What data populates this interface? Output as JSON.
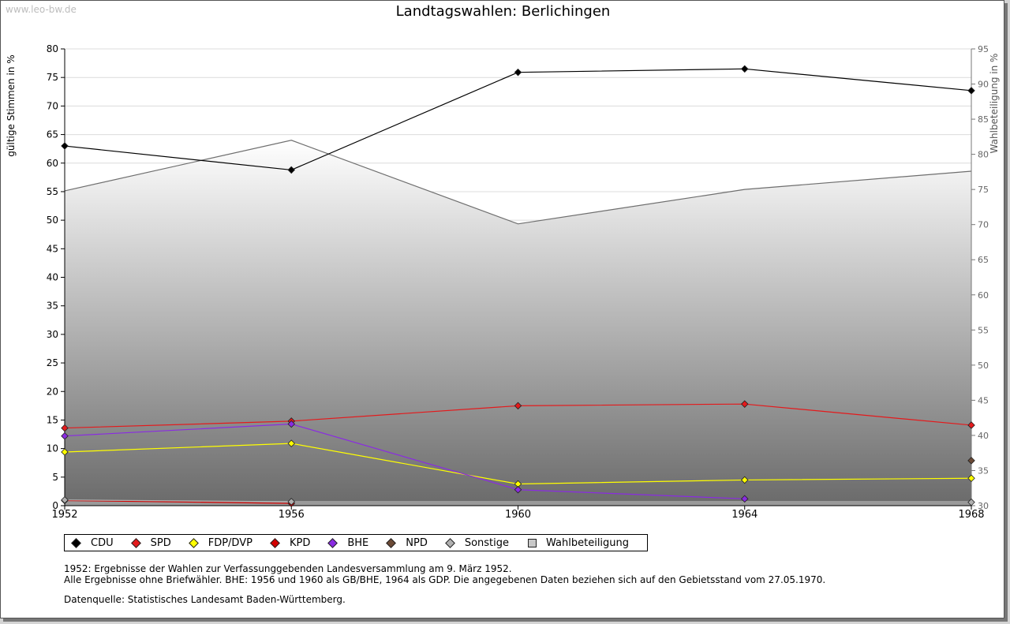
{
  "watermark": "www.leo-bw.de",
  "chart_data": {
    "type": "line",
    "title": "Landtagswahlen: Berlichingen",
    "ylabel": "gültige Stimmen in %",
    "y2label": "Wahlbeteiligung in %",
    "x": [
      "1952",
      "1956",
      "1960",
      "1964",
      "1968"
    ],
    "ylim": [
      0,
      80
    ],
    "yticks": [
      "0",
      "5",
      "10",
      "15",
      "20",
      "25",
      "30",
      "35",
      "40",
      "45",
      "50",
      "55",
      "60",
      "65",
      "70",
      "75",
      "80"
    ],
    "y2lim": [
      30,
      95
    ],
    "y2ticks": [
      "30",
      "35",
      "40",
      "45",
      "50",
      "55",
      "60",
      "65",
      "70",
      "75",
      "80",
      "85",
      "90",
      "95"
    ],
    "grid": true,
    "series": [
      {
        "name": "CDU",
        "color": "#000000",
        "values": [
          63.0,
          58.8,
          75.9,
          76.5,
          72.7
        ]
      },
      {
        "name": "SPD",
        "color": "#e41a1c",
        "values": [
          13.6,
          14.8,
          17.5,
          17.8,
          14.1
        ]
      },
      {
        "name": "FDP/DVP",
        "color": "#ffff00",
        "values": [
          9.4,
          10.9,
          3.8,
          4.5,
          4.8
        ]
      },
      {
        "name": "KPD",
        "color": "#d40000",
        "values": [
          0.9,
          0.4,
          null,
          null,
          null
        ]
      },
      {
        "name": "BHE",
        "color": "#8a2be2",
        "values": [
          12.2,
          14.3,
          2.8,
          1.2,
          null
        ]
      },
      {
        "name": "NPD",
        "color": "#6b4a36",
        "values": [
          null,
          null,
          null,
          null,
          7.9
        ]
      },
      {
        "name": "Sonstige",
        "color": "#b0b0b0",
        "values": [
          1.0,
          0.7,
          null,
          null,
          0.6
        ]
      }
    ],
    "turnout": {
      "name": "Wahlbeteiligung",
      "values": [
        74.8,
        82.0,
        70.1,
        75.0,
        77.6
      ]
    },
    "legend_position": "bottom"
  },
  "notes": {
    "line1": "1952: Ergebnisse der Wahlen zur Verfassunggebenden Landesversammlung am 9. März 1952.",
    "line2": "Alle Ergebnisse ohne Briefwähler. BHE: 1956 und 1960 als GB/BHE, 1964 als GDP. Die angegebenen Daten beziehen sich auf den Gebietsstand vom 27.05.1970.",
    "source": "Datenquelle: Statistisches Landesamt Baden-Württemberg."
  }
}
